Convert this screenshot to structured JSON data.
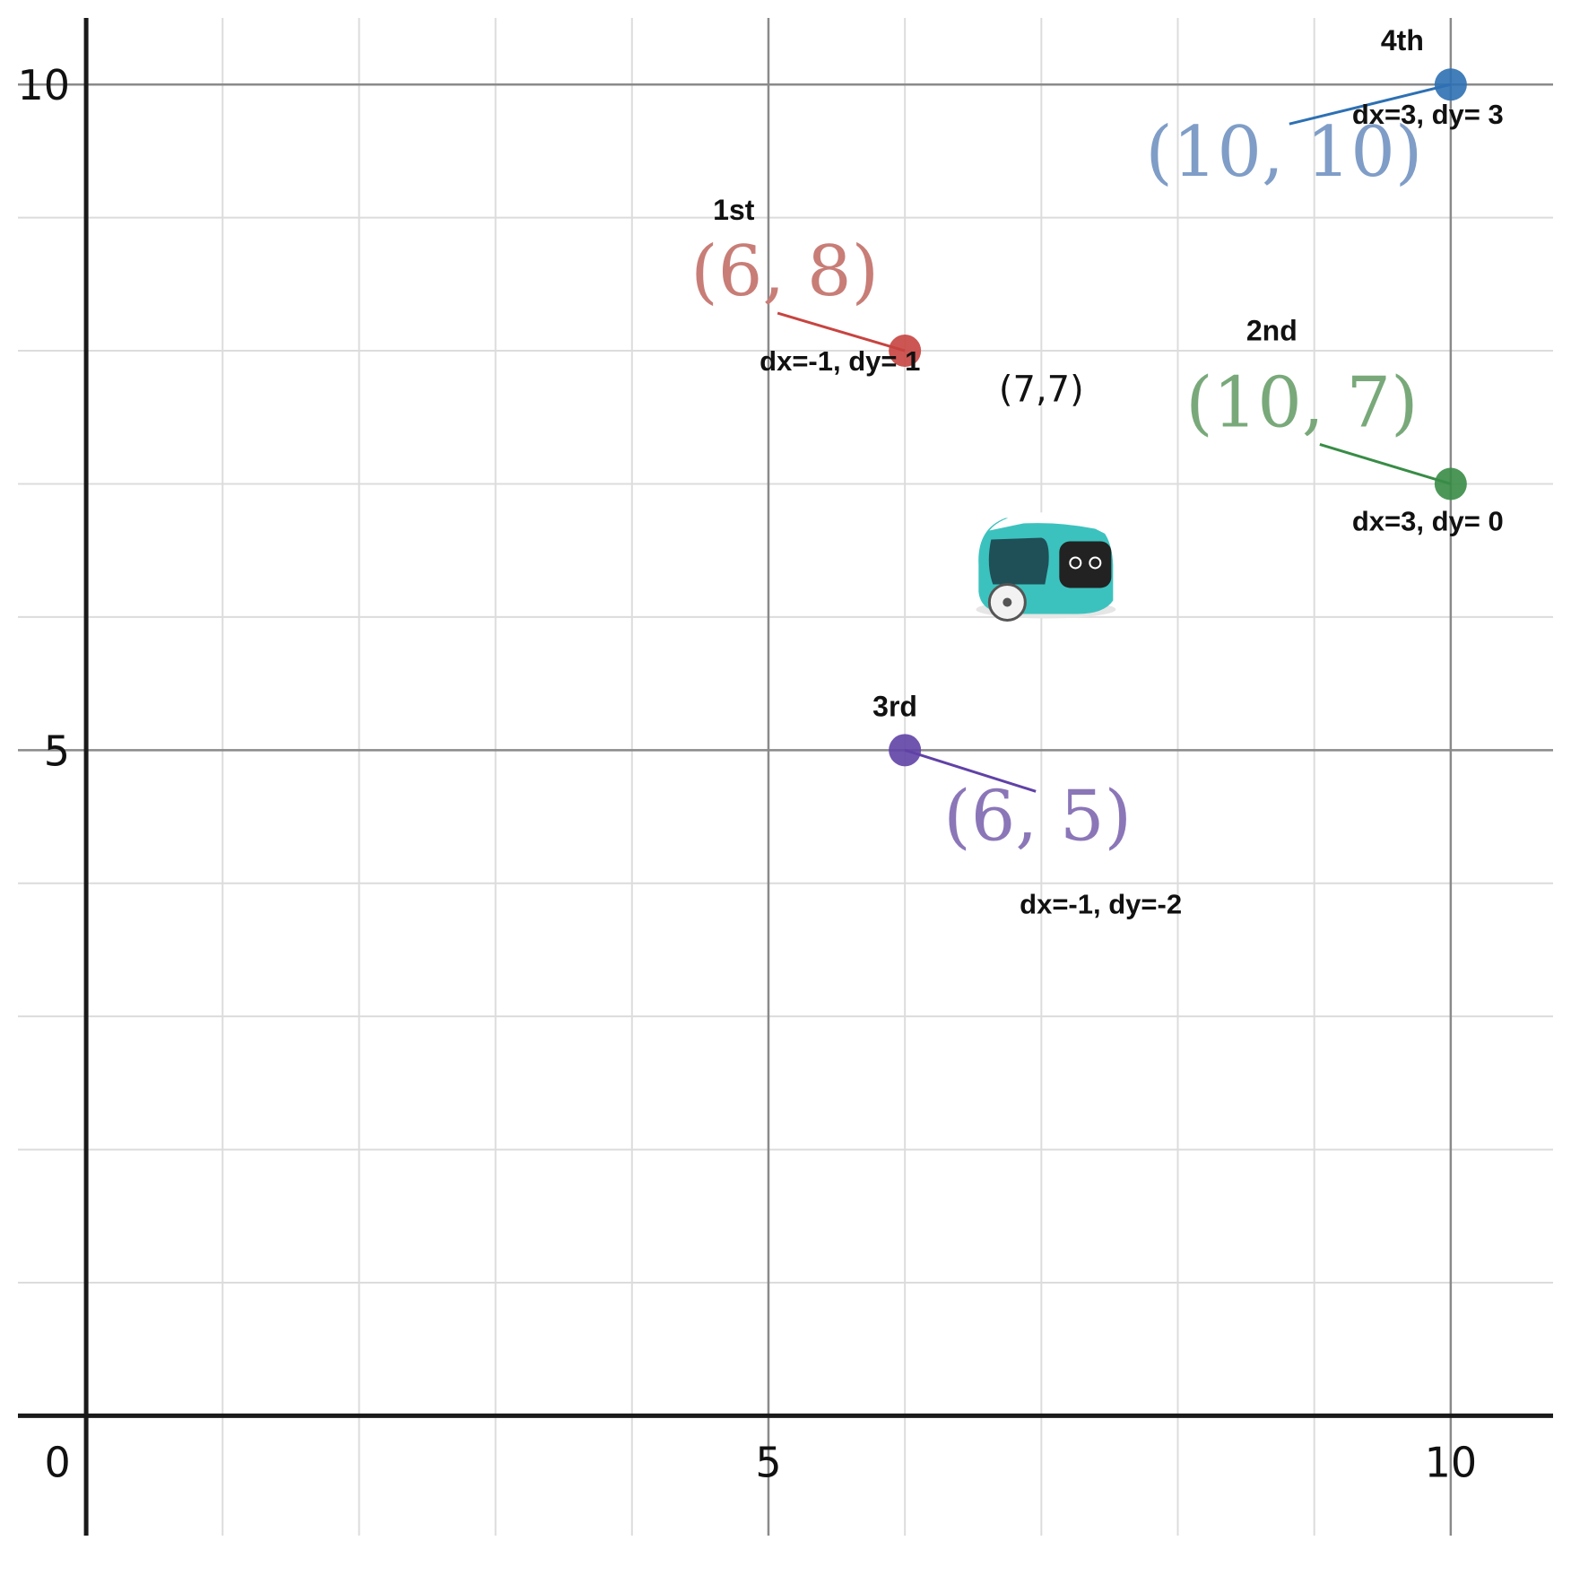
{
  "chart_data": {
    "type": "scatter",
    "title": "",
    "xlabel": "",
    "ylabel": "",
    "xlim": [
      -0.5,
      10.75
    ],
    "ylim": [
      -0.9,
      10.5
    ],
    "grid": true,
    "minor_step": 1,
    "major_step": 5,
    "origin_label": "0",
    "x_tick_labels": [
      {
        "value": 5,
        "label": "5"
      },
      {
        "value": 10,
        "label": "10"
      }
    ],
    "y_tick_labels": [
      {
        "value": 5,
        "label": "5"
      },
      {
        "value": 10,
        "label": "10"
      }
    ],
    "points": [
      {
        "x": 6,
        "y": 8,
        "order": "1st",
        "coord_label": "(6, 8)",
        "delta_label": "dx=-1, dy= 1",
        "color": "#c74440",
        "label_color": "#c87d77"
      },
      {
        "x": 10,
        "y": 7,
        "order": "2nd",
        "coord_label": "(10, 7)",
        "delta_label": "dx=3, dy= 0",
        "color": "#388c46",
        "label_color": "#79a97a"
      },
      {
        "x": 6,
        "y": 5,
        "order": "3rd",
        "coord_label": "(6, 5)",
        "delta_label": "dx=-1, dy=-2",
        "color": "#6042a6",
        "label_color": "#8b76b8"
      },
      {
        "x": 10,
        "y": 10,
        "order": "4th",
        "coord_label": "(10, 10)",
        "delta_label": "dx=3, dy= 3",
        "color": "#2d70b3",
        "label_color": "#7f9dc7"
      }
    ],
    "robot": {
      "x": 7,
      "y": 7,
      "label": "(7,7)",
      "body_color": "#3cc2be"
    }
  }
}
